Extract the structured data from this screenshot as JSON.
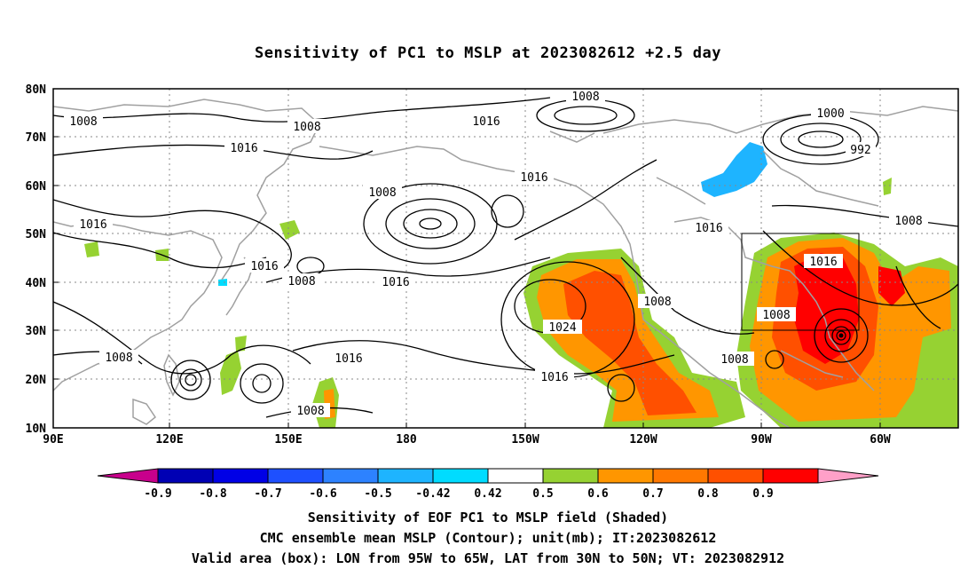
{
  "title": "Sensitivity of PC1 to MSLP at 2023082612 +2.5 day",
  "axes": {
    "lat_labels": [
      "80N",
      "70N",
      "60N",
      "50N",
      "40N",
      "30N",
      "20N",
      "10N"
    ],
    "lon_labels": [
      "90E",
      "120E",
      "150E",
      "180",
      "150W",
      "120W",
      "90W",
      "60W"
    ]
  },
  "contour_labels": [
    {
      "text": "1008"
    },
    {
      "text": "1008"
    },
    {
      "text": "1016"
    },
    {
      "text": "1008"
    },
    {
      "text": "1016"
    },
    {
      "text": "1016"
    },
    {
      "text": "1016"
    },
    {
      "text": "1000"
    },
    {
      "text": "992"
    },
    {
      "text": "1008"
    },
    {
      "text": "1016"
    },
    {
      "text": "1008"
    },
    {
      "text": "1016"
    },
    {
      "text": "1016"
    },
    {
      "text": "1016"
    },
    {
      "text": "1024"
    },
    {
      "text": "1008"
    },
    {
      "text": "1008"
    },
    {
      "text": "1008"
    },
    {
      "text": "1008"
    },
    {
      "text": "1016"
    },
    {
      "text": "1008"
    },
    {
      "text": "1008"
    },
    {
      "text": "1016"
    }
  ],
  "colorbar": {
    "colors": [
      "#c8008c",
      "#0000b4",
      "#0000e6",
      "#1e50ff",
      "#2d82ff",
      "#1eb4ff",
      "#00dcff",
      "#ffffff",
      "#96d232",
      "#ff9600",
      "#ff7800",
      "#ff5000",
      "#ff0000",
      "#ffa0c8"
    ],
    "labels": [
      "-0.9",
      "-0.8",
      "-0.7",
      "-0.6",
      "-0.5",
      "-0.42",
      "0.42",
      "0.5",
      "0.6",
      "0.7",
      "0.8",
      "0.9"
    ]
  },
  "captions": [
    "Sensitivity of EOF PC1 to MSLP field (Shaded)",
    "CMC ensemble mean MSLP (Contour); unit(mb); IT:2023082612",
    "Valid area (box): LON from 95W to 65W, LAT from 30N to 50N; VT: 2023082912"
  ]
}
